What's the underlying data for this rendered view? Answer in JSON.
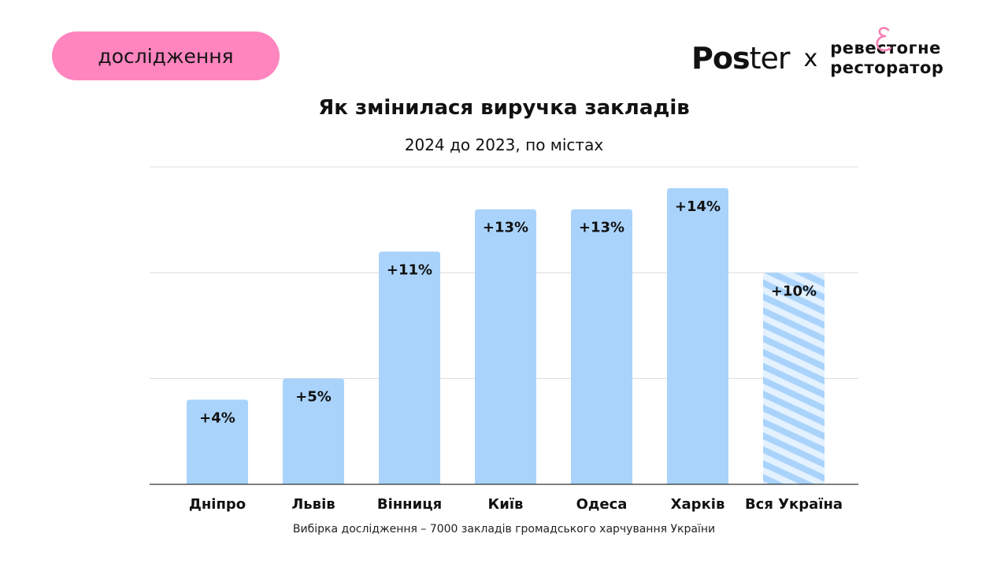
{
  "badge": "дослідження",
  "logos": {
    "poster_bold": "Pos",
    "poster_light": "ter",
    "separator": "x",
    "partner_line1": "ревестогне",
    "partner_line2": "ресторатор",
    "partner_mark": "&"
  },
  "note": "Вибірка дослідження – 7000 закладів громадського харчування України",
  "colors": {
    "bar": "#a9d3fb",
    "badge": "#ff85bf",
    "stripe_light": "#e4f1fe"
  },
  "chart_data": {
    "type": "bar",
    "title": "Як змінилася виручка закладів",
    "subtitle": "2024 до 2023, по містах",
    "categories": [
      "Дніпро",
      "Львів",
      "Вінниця",
      "Київ",
      "Одеса",
      "Харків",
      "Вся Україна"
    ],
    "values": [
      4,
      5,
      11,
      13,
      13,
      14,
      10
    ],
    "data_labels": [
      "+4%",
      "+5%",
      "+11%",
      "+13%",
      "+13%",
      "+14%",
      "+10%"
    ],
    "highlight": {
      "category": "Вся Україна",
      "style": "striped"
    },
    "ylim": [
      0,
      15
    ],
    "grid": true,
    "gridlines": [
      5,
      10,
      15
    ],
    "y_ticks_shown": false
  }
}
